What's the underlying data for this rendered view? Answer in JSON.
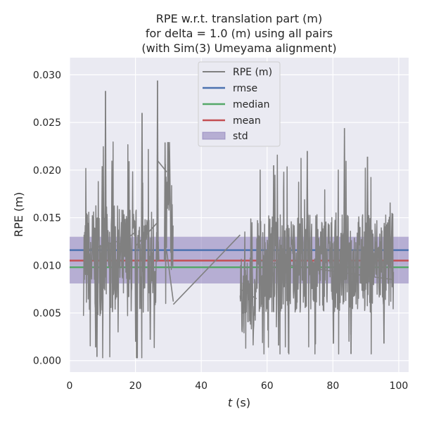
{
  "chart_data": {
    "type": "line",
    "title_lines": [
      "RPE w.r.t. translation part (m)",
      "for delta = 1.0 (m) using all pairs",
      "(with Sim(3) Umeyama alignment)"
    ],
    "xlabel_italic": "t",
    "xlabel_rest": " (s)",
    "ylabel": "RPE (m)",
    "xlim": [
      0,
      103
    ],
    "ylim": [
      -0.0012,
      0.0318
    ],
    "xticks": [
      0,
      20,
      40,
      60,
      80,
      100
    ],
    "xtick_labels": [
      "0",
      "20",
      "40",
      "60",
      "80",
      "100"
    ],
    "yticks": [
      0.0,
      0.005,
      0.01,
      0.015,
      0.02,
      0.025,
      0.03
    ],
    "ytick_labels": [
      "0.000",
      "0.005",
      "0.010",
      "0.015",
      "0.020",
      "0.025",
      "0.030"
    ],
    "grid": true,
    "legend_position": "top-center",
    "legend": [
      "RPE (m)",
      "rmse",
      "median",
      "mean",
      "std"
    ],
    "stats": {
      "rmse": 0.0116,
      "median": 0.0098,
      "mean": 0.0105,
      "std_band": [
        0.0081,
        0.013
      ]
    },
    "colors": {
      "series": "#808080",
      "rmse": "#4c72b0",
      "median": "#55a868",
      "mean": "#c44e52",
      "std": "#8172b3",
      "axes_bg": "#eaeaf2",
      "grid": "#ffffff"
    },
    "segments": [
      {
        "t0": 4.2,
        "t1": 14.3,
        "start": 0.0115,
        "end": 0.0125
      },
      {
        "t0": 14.3,
        "t1": 20.0,
        "start": 0.012,
        "end": 0.0135
      },
      {
        "t0": 20.0,
        "t1": 26.7,
        "start": 0.012,
        "end": 0.0145
      },
      {
        "t0": 26.7,
        "t1": 29.5,
        "start": 0.021,
        "end": 0.0198
      },
      {
        "t0": 29.5,
        "t1": 31.5,
        "start": 0.0115,
        "end": 0.0062
      },
      {
        "t0": 31.5,
        "t1": 51.8,
        "start": 0.0059,
        "end": 0.0132
      },
      {
        "t0": 51.8,
        "t1": 56.8,
        "start": 0.0075,
        "end": 0.0065
      },
      {
        "t0": 56.8,
        "t1": 98.4,
        "start": 0.0105,
        "end": 0.0085
      }
    ],
    "dense_ranges": [
      {
        "t0": 4.2,
        "t1": 26.7,
        "base": 0.0105,
        "amp": 0.0058,
        "min": 0.0003,
        "max": 0.0294
      },
      {
        "t0": 29.0,
        "t1": 31.5,
        "base": 0.015,
        "amp": 0.006,
        "min": 0.006,
        "max": 0.0229
      },
      {
        "t0": 51.8,
        "t1": 56.8,
        "base": 0.0068,
        "amp": 0.004,
        "min": 0.0013,
        "max": 0.015
      },
      {
        "t0": 56.8,
        "t1": 98.4,
        "base": 0.0103,
        "amp": 0.0052,
        "min": 0.0007,
        "max": 0.0244
      }
    ],
    "spikes": [
      {
        "t": 10.9,
        "value": 0.0283
      },
      {
        "t": 9.9,
        "value": 0.0204
      },
      {
        "t": 7.9,
        "value": 0.0014
      },
      {
        "t": 8.3,
        "value": 0.0004
      },
      {
        "t": 22.0,
        "value": 0.026
      },
      {
        "t": 24.5,
        "value": 0.0022
      },
      {
        "t": 26.7,
        "value": 0.0294
      },
      {
        "t": 26.9,
        "value": 0.0125
      },
      {
        "t": 29.0,
        "value": 0.0229
      },
      {
        "t": 62.0,
        "value": 0.0205
      },
      {
        "t": 63.5,
        "value": 0.0016
      },
      {
        "t": 66.5,
        "value": 0.0008
      },
      {
        "t": 72.2,
        "value": 0.022
      },
      {
        "t": 83.5,
        "value": 0.0244
      },
      {
        "t": 85.5,
        "value": 0.0007
      },
      {
        "t": 90.5,
        "value": 0.0214
      },
      {
        "t": 95.5,
        "value": 0.0018
      }
    ]
  }
}
